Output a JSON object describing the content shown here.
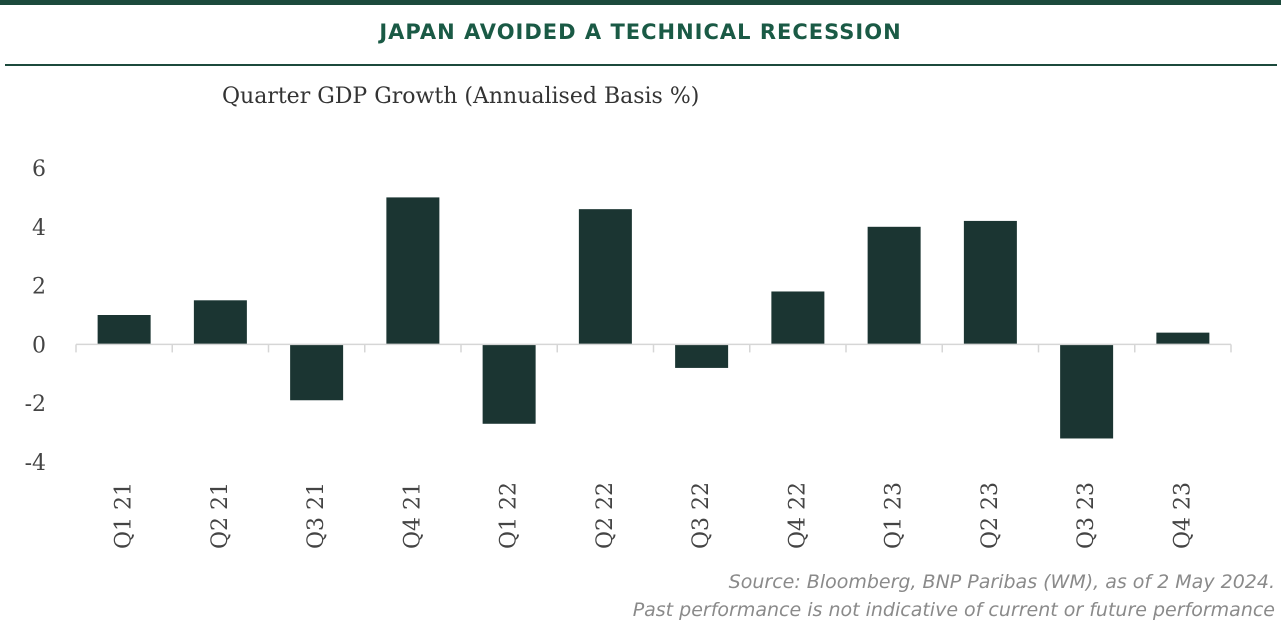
{
  "banner": {
    "title": "JAPAN AVOIDED A TECHNICAL RECESSION"
  },
  "footer": {
    "source": "Source: Bloomberg, BNP Paribas (WM), as of 2 May 2024.",
    "disclaimer": "Past performance is not indicative of current or future performance"
  },
  "colors": {
    "bar": "#1b3532",
    "header_accent": "#1a5a45"
  },
  "chart_data": {
    "type": "bar",
    "title": "Quarter GDP Growth (Annualised Basis %)",
    "xlabel": "",
    "ylabel": "",
    "ylim": [
      -4,
      6
    ],
    "yticks": [
      6,
      4,
      2,
      0,
      -2,
      -4
    ],
    "grid": false,
    "categories": [
      "Q1 21",
      "Q2 21",
      "Q3 21",
      "Q4 21",
      "Q1 22",
      "Q2 22",
      "Q3 22",
      "Q4 22",
      "Q1 23",
      "Q2 23",
      "Q3 23",
      "Q4 23"
    ],
    "values": [
      1.0,
      1.5,
      -1.9,
      5.0,
      -2.7,
      4.6,
      -0.8,
      1.8,
      4.0,
      4.2,
      -3.2,
      0.4
    ]
  }
}
